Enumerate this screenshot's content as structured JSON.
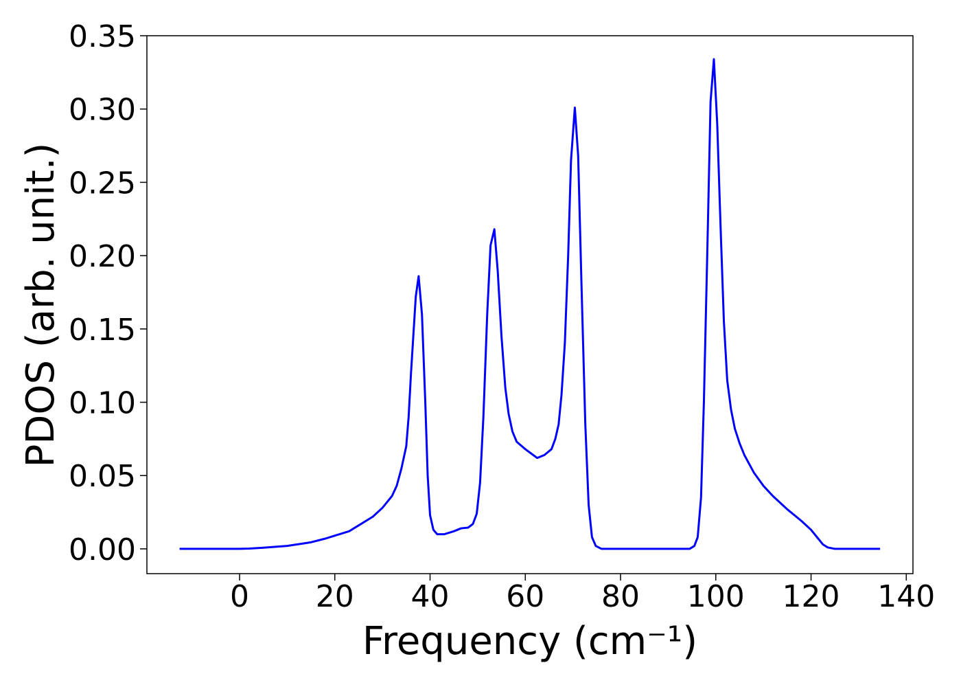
{
  "chart_data": {
    "type": "line",
    "x_label": "Frequency (cm⁻¹)",
    "y_label": "PDOS (arb. unit.)",
    "xlim": [
      -19.46,
      141.4
    ],
    "ylim": [
      -0.0169,
      0.35
    ],
    "xticks": [
      0,
      20,
      40,
      60,
      80,
      100,
      120,
      140
    ],
    "yticks": [
      {
        "value": 0,
        "label": "0.00"
      },
      0.05,
      {
        "value": 0.1,
        "label": "0.10"
      },
      0.15,
      {
        "value": 0.2,
        "label": "0.20"
      },
      0.25,
      {
        "value": 0.3,
        "label": "0.30"
      },
      0.35
    ],
    "grid": false,
    "series": [
      {
        "color": "#0000ff",
        "x": [
          -12.6,
          0,
          2,
          5,
          10,
          15,
          18,
          20,
          23,
          25,
          28,
          30,
          32,
          33,
          34,
          35,
          35.5,
          36,
          37,
          37.6,
          38.3,
          39,
          39.5,
          40,
          40.7,
          41.5,
          43,
          45,
          46.5,
          48,
          49,
          49.8,
          50.5,
          51.2,
          52,
          52.7,
          53.5,
          54.2,
          55,
          55.8,
          56.5,
          57.3,
          58.2,
          60,
          62.5,
          64,
          65.5,
          66.3,
          67,
          67.6,
          68.3,
          69,
          69.6,
          70.4,
          71.1,
          71.8,
          72.6,
          73.3,
          74,
          74.8,
          76,
          90,
          94.5,
          95.5,
          96.2,
          96.9,
          97.5,
          98.2,
          98.9,
          99.6,
          100.3,
          101,
          101.7,
          102.4,
          103.2,
          104,
          105,
          106,
          108,
          110,
          112,
          115,
          118,
          120,
          121.5,
          122.5,
          123.5,
          125,
          134.5
        ],
        "values": [
          0,
          0,
          0.0002,
          0.0008,
          0.002,
          0.0045,
          0.007,
          0.009,
          0.012,
          0.016,
          0.022,
          0.028,
          0.036,
          0.043,
          0.055,
          0.07,
          0.09,
          0.12,
          0.172,
          0.186,
          0.16,
          0.1,
          0.05,
          0.023,
          0.013,
          0.01,
          0.01,
          0.012,
          0.014,
          0.0145,
          0.017,
          0.024,
          0.045,
          0.09,
          0.16,
          0.207,
          0.218,
          0.19,
          0.145,
          0.11,
          0.092,
          0.08,
          0.073,
          0.068,
          0.062,
          0.064,
          0.068,
          0.075,
          0.085,
          0.105,
          0.14,
          0.2,
          0.265,
          0.301,
          0.268,
          0.18,
          0.085,
          0.03,
          0.008,
          0.002,
          0,
          0,
          0,
          0.002,
          0.008,
          0.035,
          0.1,
          0.2,
          0.305,
          0.334,
          0.29,
          0.22,
          0.155,
          0.115,
          0.095,
          0.082,
          0.072,
          0.064,
          0.052,
          0.043,
          0.036,
          0.027,
          0.019,
          0.013,
          0.007,
          0.003,
          0.001,
          0,
          0
        ]
      }
    ]
  }
}
